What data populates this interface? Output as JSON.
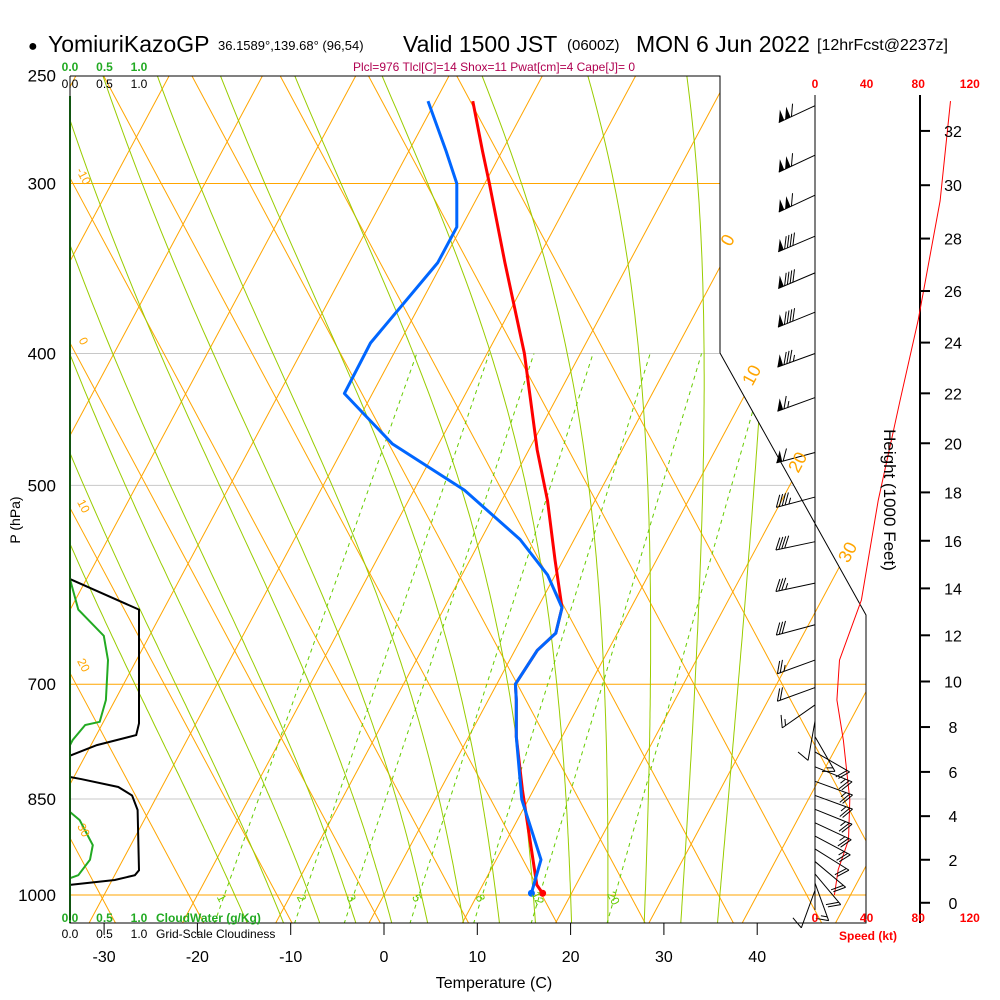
{
  "header": {
    "bullet": "●",
    "station": "YomiuriKazoGP",
    "coords": "36.1589°,139.68° (96,54)",
    "valid": "Valid 1500 JST",
    "utc": "(0600Z)",
    "date": "MON 6 Jun 2022",
    "forecast": "[12hrFcst@2237z]",
    "indices": "Plcl=976 Tlcl[C]=14 Shox=11 Pwat[cm]=4 Cape[J]= 0"
  },
  "colors": {
    "temperature": "#ff0000",
    "dewpoint": "#0066ff",
    "isotherm": "#ffa500",
    "moist_adiabat": "#99cc00",
    "mixing_ratio": "#66cc00",
    "cloud_water": "#22aa22",
    "cloudiness": "#000000",
    "speed": "#ff0000",
    "indices": "#b00050"
  },
  "chart_data": {
    "type": "line",
    "title": "Skew-T log-P sounding",
    "xlabel": "Temperature (C)",
    "ylabel": "P (hPa)",
    "right_label": "Height (1000 Feet)",
    "speed_label": "Speed (kt)",
    "cloud_water_label": "CloudWater (g/Kg)",
    "cloudiness_label": "Grid-Scale Cloudiness",
    "pressure_levels": [
      250,
      300,
      400,
      500,
      700,
      850,
      1000
    ],
    "pressure_range": [
      250,
      1050
    ],
    "temperature_ticks": [
      -30,
      -20,
      -10,
      0,
      10,
      20,
      30,
      40
    ],
    "height_ticks_kft": [
      0,
      2,
      4,
      6,
      8,
      10,
      12,
      14,
      16,
      18,
      20,
      22,
      24,
      26,
      28,
      30,
      32
    ],
    "speed_ticks": [
      0,
      40,
      80,
      120
    ],
    "cloud_ticks": [
      "0.0",
      "0.5",
      "1.0"
    ],
    "isotherm_labels": [
      "0",
      "10",
      "20",
      "30"
    ],
    "left_line_labels": [
      "-10",
      "0",
      "10",
      "20",
      "30"
    ],
    "mixing_ratio_labels": [
      "1",
      "2",
      "3",
      "5",
      "8",
      "12",
      "20"
    ],
    "series": [
      {
        "name": "Temperature",
        "points": [
          [
            997,
            16.9
          ],
          [
            983,
            15.8
          ],
          [
            837,
            8.8
          ],
          [
            765,
            5.1
          ],
          [
            719,
            3.0
          ],
          [
            700,
            2.0
          ],
          [
            661,
            2.4
          ],
          [
            642,
            3.4
          ],
          [
            615,
            2.6
          ],
          [
            567,
            -0.9
          ],
          [
            513,
            -5.1
          ],
          [
            471,
            -9.1
          ],
          [
            400,
            -16.0
          ],
          [
            343,
            -23.3
          ],
          [
            300,
            -29.5
          ],
          [
            284,
            -32.1
          ],
          [
            261,
            -36.0
          ]
        ]
      },
      {
        "name": "Dewpoint",
        "points": [
          [
            997,
            15.7
          ],
          [
            942,
            14.8
          ],
          [
            851,
            9.3
          ],
          [
            765,
            5.1
          ],
          [
            719,
            3.0
          ],
          [
            700,
            2.0
          ],
          [
            661,
            2.4
          ],
          [
            642,
            3.4
          ],
          [
            615,
            2.6
          ],
          [
            582,
            -0.8
          ],
          [
            548,
            -5.8
          ],
          [
            504,
            -14.6
          ],
          [
            466,
            -25.0
          ],
          [
            428,
            -33.0
          ],
          [
            393,
            -33.1
          ],
          [
            343,
            -30.5
          ],
          [
            323,
            -30.5
          ],
          [
            300,
            -33.0
          ],
          [
            284,
            -36.0
          ],
          [
            261,
            -40.8
          ]
        ]
      }
    ],
    "wind_speed_profile": [
      [
        261,
        105
      ],
      [
        309,
        97
      ],
      [
        378,
        80
      ],
      [
        433,
        66
      ],
      [
        513,
        49
      ],
      [
        607,
        36
      ],
      [
        672,
        19
      ],
      [
        719,
        17
      ],
      [
        770,
        22
      ],
      [
        851,
        27
      ],
      [
        911,
        26
      ],
      [
        958,
        18
      ],
      [
        1000,
        15
      ]
    ],
    "wind_barbs": [
      [
        263,
        245,
        110
      ],
      [
        286,
        245,
        110
      ],
      [
        306,
        245,
        110
      ],
      [
        328,
        247,
        90
      ],
      [
        349,
        247,
        90
      ],
      [
        373,
        248,
        90
      ],
      [
        400,
        250,
        85
      ],
      [
        431,
        250,
        65
      ],
      [
        473,
        255,
        60
      ],
      [
        510,
        255,
        45
      ],
      [
        550,
        258,
        40
      ],
      [
        590,
        258,
        35
      ],
      [
        633,
        255,
        30
      ],
      [
        672,
        250,
        25
      ],
      [
        704,
        250,
        20
      ],
      [
        725,
        235,
        15
      ],
      [
        745,
        190,
        12
      ],
      [
        765,
        150,
        15
      ],
      [
        785,
        120,
        20
      ],
      [
        805,
        112,
        24
      ],
      [
        825,
        110,
        26
      ],
      [
        845,
        110,
        27
      ],
      [
        865,
        112,
        27
      ],
      [
        885,
        115,
        26
      ],
      [
        905,
        118,
        25
      ],
      [
        925,
        122,
        22
      ],
      [
        945,
        130,
        20
      ],
      [
        965,
        140,
        18
      ],
      [
        980,
        160,
        15
      ],
      [
        992,
        200,
        12
      ]
    ],
    "cloudiness": [
      [
        [
          586,
          0
        ],
        [
          617,
          1.0
        ],
        [
          748,
          1.0
        ],
        [
          763,
          0.96
        ],
        [
          776,
          0.39
        ],
        [
          790,
          0
        ]
      ],
      [
        [
          819,
          0
        ],
        [
          822,
          0.17
        ],
        [
          833,
          0.7
        ],
        [
          845,
          0.9
        ],
        [
          866,
          0.98
        ],
        [
          959,
          1.0
        ],
        [
          967,
          0.94
        ],
        [
          975,
          0.65
        ],
        [
          983,
          0
        ]
      ]
    ],
    "cloud_water": [
      [
        [
          586,
          0
        ],
        [
          617,
          0.12
        ],
        [
          645,
          0.49
        ],
        [
          672,
          0.55
        ],
        [
          719,
          0.52
        ],
        [
          746,
          0.43
        ],
        [
          750,
          0.22
        ],
        [
          769,
          0.04
        ],
        [
          776,
          0
        ]
      ],
      [
        [
          869,
          0
        ],
        [
          881,
          0.14
        ],
        [
          919,
          0.33
        ],
        [
          942,
          0.29
        ],
        [
          967,
          0.12
        ],
        [
          972,
          0
        ]
      ]
    ]
  }
}
